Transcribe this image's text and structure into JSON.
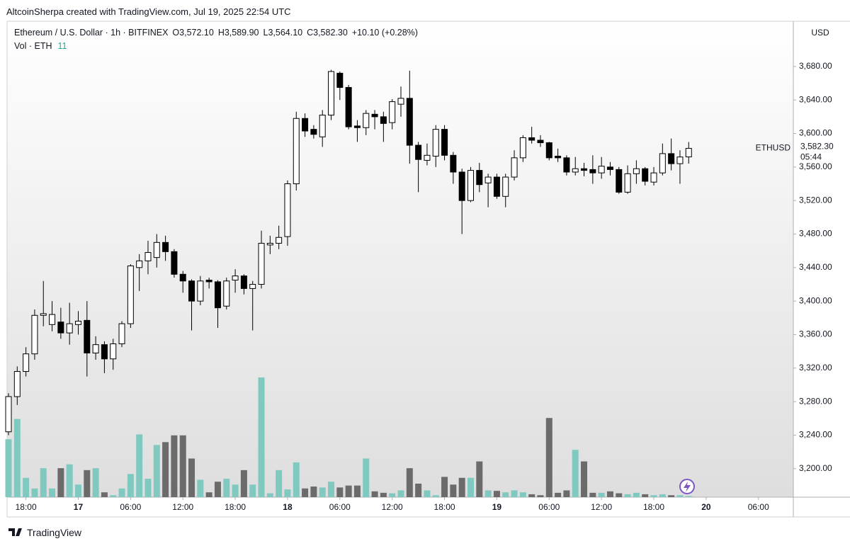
{
  "header": {
    "credit": "AltcoinSherpa created with TradingView.com, Jul 19, 2025 22:54 UTC",
    "brand": "TradingView"
  },
  "chart_data": {
    "type": "candlestick",
    "title": "Ethereum / U.S. Dollar · 1h · BITFINEX",
    "ohlc_labels": [
      "O3,572.10",
      "H3,589.90",
      "L3,564.10",
      "C3,582.30"
    ],
    "change_label": "+10.10 (+0.28%)",
    "volume_name": "Vol · ETH",
    "currency": "USD",
    "symbol_tag": "ETHUSD",
    "last_price_label": "3,582.30",
    "countdown": "05:44",
    "up_color": "#ffffff",
    "down_color": "#000000",
    "volume_up_color": "#80c9c0",
    "volume_down_color": "#6b6b6b",
    "categories": [
      null,
      null,
      null,
      null,
      null,
      null,
      null,
      null,
      null,
      null,
      null,
      null,
      null,
      null,
      null,
      null,
      null,
      null,
      null,
      null,
      null,
      null,
      null,
      null,
      null,
      null,
      null,
      null,
      null,
      null,
      null,
      null,
      null,
      null,
      null,
      null,
      null,
      null,
      null,
      null,
      null,
      null,
      null,
      null,
      null,
      null,
      null,
      null,
      null,
      null,
      null,
      null,
      null,
      null,
      null,
      null,
      null,
      null,
      null,
      null,
      null,
      null,
      null,
      null,
      null,
      null,
      null,
      null,
      null,
      null,
      null,
      null,
      null,
      null,
      null,
      null,
      null,
      null,
      null
    ],
    "open": [
      3244,
      3286,
      3316,
      3337,
      3383,
      3372,
      3375,
      3362,
      3372,
      3377,
      3338,
      3348,
      3331,
      3349,
      3373,
      3440,
      3448,
      3452,
      3470,
      3459,
      3432,
      3424,
      3400,
      3425,
      3423,
      3394,
      3425,
      3430,
      3415,
      3420,
      3467,
      3469,
      3477,
      3540,
      3618,
      3605,
      3596,
      3622,
      3672,
      3655,
      3609,
      3607,
      3623,
      3620,
      3613,
      3635,
      3642,
      3586,
      3568,
      3573,
      3605,
      3574,
      3554,
      3520,
      3556,
      3541,
      3548,
      3525,
      3548,
      3571,
      3595,
      3592,
      3589,
      3573,
      3571,
      3554,
      3558,
      3557,
      3553,
      3560,
      3557,
      3530,
      3552,
      3558,
      3542,
      3553,
      3576,
      3564,
      3572.1
    ],
    "high": [
      3290,
      3322,
      3345,
      3390,
      3424,
      3400,
      3392,
      3398,
      3388,
      3400,
      3358,
      3352,
      3355,
      3376,
      3444,
      3456,
      3472,
      3480,
      3478,
      3462,
      3436,
      3426,
      3430,
      3428,
      3425,
      3428,
      3438,
      3432,
      3424,
      3484,
      3478,
      3490,
      3544,
      3626,
      3624,
      3610,
      3628,
      3676,
      3674,
      3658,
      3616,
      3628,
      3628,
      3626,
      3641,
      3656,
      3675,
      3590,
      3588,
      3610,
      3610,
      3578,
      3558,
      3560,
      3565,
      3552,
      3552,
      3552,
      3580,
      3598,
      3608,
      3598,
      3590,
      3582,
      3574,
      3572,
      3565,
      3574,
      3572,
      3566,
      3560,
      3562,
      3568,
      3560,
      3560,
      3588,
      3594,
      3580,
      3589.9
    ],
    "low": [
      3240,
      3276,
      3310,
      3330,
      3370,
      3364,
      3355,
      3348,
      3360,
      3310,
      3330,
      3314,
      3318,
      3345,
      3368,
      3412,
      3432,
      3440,
      3448,
      3428,
      3410,
      3365,
      3395,
      3415,
      3368,
      3390,
      3410,
      3408,
      3365,
      3415,
      3456,
      3462,
      3466,
      3532,
      3596,
      3594,
      3584,
      3616,
      3640,
      3605,
      3590,
      3598,
      3605,
      3590,
      3605,
      3620,
      3564,
      3530,
      3562,
      3560,
      3568,
      3540,
      3480,
      3518,
      3530,
      3512,
      3522,
      3512,
      3544,
      3566,
      3588,
      3584,
      3568,
      3566,
      3550,
      3550,
      3549,
      3540,
      3546,
      3550,
      3528,
      3528,
      3540,
      3538,
      3538,
      3550,
      3556,
      3540,
      3564.1
    ],
    "close": [
      3286,
      3316,
      3337,
      3383,
      3385,
      3384,
      3362,
      3373,
      3376,
      3338,
      3348,
      3331,
      3349,
      3373,
      3442,
      3448,
      3458,
      3470,
      3459,
      3432,
      3424,
      3400,
      3424,
      3423,
      3392,
      3424,
      3430,
      3415,
      3420,
      3469,
      3469,
      3476,
      3540,
      3618,
      3603,
      3599,
      3622,
      3674,
      3655,
      3608,
      3607,
      3624,
      3620,
      3612,
      3638,
      3642,
      3586,
      3569,
      3574,
      3605,
      3574,
      3554,
      3520,
      3556,
      3539,
      3548,
      3525,
      3548,
      3571,
      3595,
      3592,
      3589,
      3571,
      3571,
      3554,
      3558,
      3556,
      3553,
      3561,
      3557,
      3530,
      3552,
      3558,
      3543,
      3553,
      3576,
      3564,
      3572,
      3582.3
    ],
    "volume": [
      600,
      810,
      200,
      90,
      300,
      90,
      300,
      340,
      130,
      280,
      300,
      50,
      20,
      90,
      240,
      650,
      190,
      540,
      570,
      640,
      640,
      400,
      180,
      50,
      160,
      190,
      130,
      280,
      130,
      1240,
      40,
      280,
      80,
      360,
      90,
      110,
      100,
      160,
      100,
      120,
      120,
      400,
      60,
      45,
      40,
      70,
      300,
      140,
      70,
      20,
      210,
      130,
      200,
      200,
      370,
      70,
      65,
      50,
      70,
      50,
      30,
      20,
      820,
      45,
      70,
      490,
      370,
      45,
      45,
      60,
      40,
      30,
      45,
      30,
      20,
      30,
      20,
      20,
      11
    ],
    "xlim": [
      -0.2,
      89.8
    ],
    "xticks": [
      {
        "value": 2,
        "label": "18:00"
      },
      {
        "value": 8,
        "label": "17"
      },
      {
        "value": 14,
        "label": "06:00"
      },
      {
        "value": 20,
        "label": "12:00"
      },
      {
        "value": 26,
        "label": "18:00"
      },
      {
        "value": 32,
        "label": "18"
      },
      {
        "value": 38,
        "label": "06:00"
      },
      {
        "value": 44,
        "label": "12:00"
      },
      {
        "value": 50,
        "label": "18:00"
      },
      {
        "value": 56,
        "label": "19"
      },
      {
        "value": 62,
        "label": "06:00"
      },
      {
        "value": 68,
        "label": "12:00"
      },
      {
        "value": 74,
        "label": "18:00"
      },
      {
        "value": 80,
        "label": "20"
      },
      {
        "value": 86,
        "label": "06:00"
      }
    ],
    "ylim": [
      3166,
      3734
    ],
    "yticks": [
      {
        "value": 3200,
        "label": "3,200.00"
      },
      {
        "value": 3240,
        "label": "3,240.00"
      },
      {
        "value": 3280,
        "label": "3,280.00"
      },
      {
        "value": 3320,
        "label": "3,320.00"
      },
      {
        "value": 3360,
        "label": "3,360.00"
      },
      {
        "value": 3400,
        "label": "3,400.00"
      },
      {
        "value": 3440,
        "label": "3,440.00"
      },
      {
        "value": 3480,
        "label": "3,480.00"
      },
      {
        "value": 3520,
        "label": "3,520.00"
      },
      {
        "value": 3560,
        "label": "3,560.00"
      },
      {
        "value": 3600,
        "label": "3,600.00"
      },
      {
        "value": 3640,
        "label": "3,640.00"
      },
      {
        "value": 3680,
        "label": "3,680.00"
      }
    ]
  }
}
